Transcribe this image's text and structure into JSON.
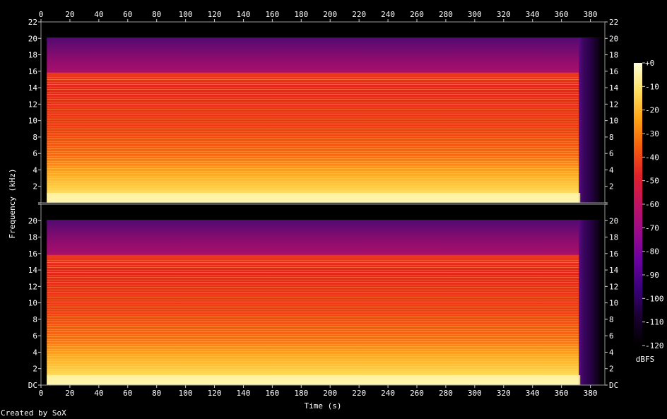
{
  "chart_data": {
    "type": "heatmap",
    "title": "",
    "xlabel": "Time (s)",
    "ylabel": "Frequency (kHz)",
    "xlim": [
      0,
      390
    ],
    "ylim": [
      0,
      22
    ],
    "x_ticks": [
      0,
      20,
      40,
      60,
      80,
      100,
      120,
      140,
      160,
      180,
      200,
      220,
      240,
      260,
      280,
      300,
      320,
      340,
      360,
      380
    ],
    "channels": [
      {
        "y_ticks": [
          0,
          2,
          4,
          6,
          8,
          10,
          12,
          14,
          16,
          18,
          20,
          22
        ],
        "y_tick_labels": [
          "",
          "2",
          "4",
          "6",
          "8",
          "10",
          "12",
          "14",
          "16",
          "18",
          "20",
          "22"
        ]
      },
      {
        "y_ticks": [
          0,
          2,
          4,
          6,
          8,
          10,
          12,
          14,
          16,
          18,
          20,
          22
        ],
        "y_tick_labels": [
          "DC",
          "2",
          "4",
          "6",
          "8",
          "10",
          "12",
          "14",
          "16",
          "18",
          "20",
          ""
        ]
      }
    ],
    "audio_active_range_s": [
      4,
      373
    ],
    "fade_out_end_s": 388,
    "bandwidth_cutoff_khz": 20.1,
    "band_edge_khz": 15.3,
    "colorbar": {
      "label": "dBFS",
      "ticks": [
        "+0",
        "-10",
        "-20",
        "-30",
        "-40",
        "-50",
        "-60",
        "-70",
        "-80",
        "-90",
        "-100",
        "-110",
        "-120"
      ],
      "range": [
        -120,
        0
      ],
      "colors": [
        "#000000",
        "#1a0030",
        "#3a007a",
        "#6a00a0",
        "#9a0a8c",
        "#c01262",
        "#e0202a",
        "#f55c0c",
        "#fda214",
        "#ffe060",
        "#ffffd8"
      ]
    }
  },
  "footer": {
    "credit": "Created by SoX"
  }
}
